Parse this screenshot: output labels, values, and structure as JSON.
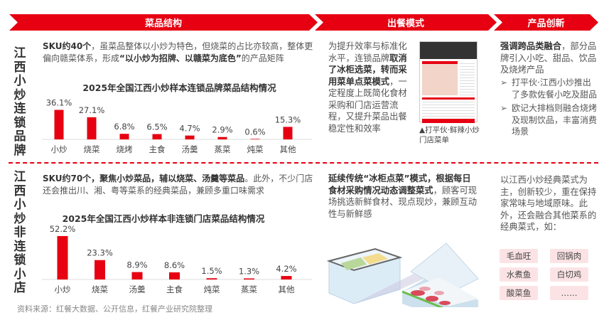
{
  "banners": [
    "菜品结构",
    "出餐模式",
    "产品创新"
  ],
  "top": {
    "side_label": "江西小炒连锁品牌",
    "intro_bold": "SKU约40个",
    "intro_a": "，虽菜品整体以小炒为特色，但烧菜的占比亦较高，整体更偏向赣菜体系，形成",
    "intro_quote": "“以小炒为招牌、以赣菜为底色”",
    "intro_b": "的产品矩阵",
    "service_a": "为提升效率与标准化水平，连锁品牌",
    "service_bold": "取消了冰柜选菜，转而采用菜单点菜模式",
    "service_b": "，一定程度上既简化食材采购和门店运营流程，又提升菜品出餐稳定性和效率",
    "menu_caption": "▲打平伙·鲜辣小炒门店菜单",
    "innov_bold": "强调跨品类融合",
    "innov_a": "，部分品牌引入小吃、甜品、饮品及烧烤产品",
    "innov_bullets": [
      "打平伙·江西小炒推出了多款佐餐小吃及甜品",
      "欧记大排档则融合烧烤及现制饮品，丰富消费场景"
    ]
  },
  "bottom": {
    "side_label": "江西小炒非连锁小店",
    "intro_bold": "SKU约70个，聚焦小炒菜品，辅以烧菜、汤羹等菜品",
    "intro_a": "。此外，不少门店还会推出川、湘、粤等菜系的经典菜品，兼顾多重口味需求",
    "service_bold": "延续传统“冰柜点菜”模式，根据每日食材采购情况动态调整菜式",
    "service_a": "，顾客可现场挑选新鲜食材、现点现炒，兼顾互动性与新鲜感",
    "innov_text": "以江西小炒经典菜式为主，创新较少，重在保持家常味与地域原味。此外，还会融合其他菜系的经典菜式，如：",
    "dishes": [
      "毛血旺",
      "回锅肉",
      "水煮鱼",
      "白切鸡",
      "酸菜鱼",
      "……"
    ]
  },
  "source": "资料来源：红餐大数据、公开信息，红餐产业研究院整理",
  "colors": {
    "accent": "#e60012",
    "tag_bg": "#fbe3e5"
  },
  "chart_data": [
    {
      "type": "bar",
      "title": "2025年全国江西小炒样本连锁品牌菜品结构情况",
      "categories": [
        "小炒",
        "烧菜",
        "烧烤",
        "主食",
        "汤羹",
        "蒸菜",
        "炖菜",
        "其他"
      ],
      "values": [
        36.1,
        27.1,
        6.8,
        6.5,
        4.7,
        2.9,
        0.6,
        15.3
      ],
      "unit": "%",
      "data_labels": [
        "36.1%",
        "27.1%",
        "6.8%",
        "6.5%",
        "4.7%",
        "2.9%",
        "0.6%",
        "15.3%"
      ],
      "color": "#e60012"
    },
    {
      "type": "bar",
      "title": "2025年全国江西小炒样本非连锁门店菜品结构情况",
      "categories": [
        "小炒",
        "烧菜",
        "汤羹",
        "主食",
        "炖菜",
        "蒸菜",
        "其他"
      ],
      "values": [
        52.2,
        23.3,
        8.9,
        8.6,
        1.5,
        1.3,
        4.2
      ],
      "unit": "%",
      "data_labels": [
        "52.2%",
        "23.3%",
        "8.9%",
        "8.6%",
        "1.5%",
        "1.3%",
        "4.2%"
      ],
      "color": "#e60012"
    }
  ]
}
